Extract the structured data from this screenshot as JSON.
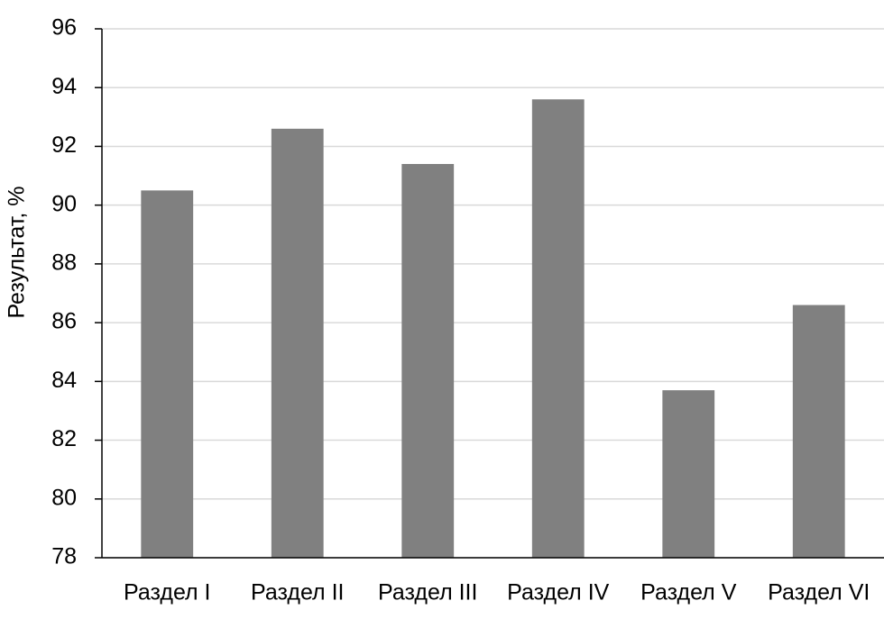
{
  "chart_data": {
    "type": "bar",
    "y_label": "Результат, %",
    "categories": [
      "Раздел I",
      "Раздел II",
      "Раздел III",
      "Раздел IV",
      "Раздел V",
      "Раздел VI"
    ],
    "values": [
      90.5,
      92.6,
      91.4,
      93.6,
      83.7,
      86.6
    ],
    "color": "#808080",
    "ylim": [
      78,
      96
    ],
    "yticks": [
      78,
      80,
      82,
      84,
      86,
      88,
      90,
      92,
      94,
      96
    ],
    "grid": true
  }
}
